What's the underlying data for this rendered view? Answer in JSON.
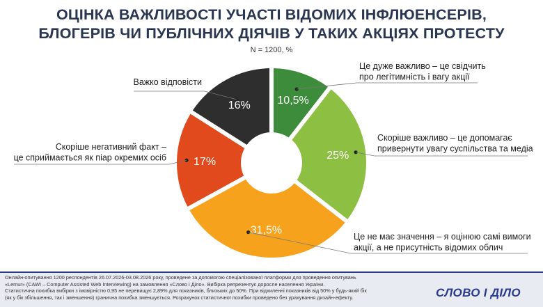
{
  "header": {
    "title_line1": "ОЦІНКА ВАЖЛИВОСТІ УЧАСТІ ВІДОМИХ ІНФЛЮЕНСЕРІВ,",
    "title_line2": "БЛОГЕРІВ ЧИ ПУБЛІЧНИХ ДІЯЧІВ У ТАКИХ АКЦІЯХ ПРОТЕСТУ",
    "subtitle": "N = 1200, %"
  },
  "chart_data": {
    "type": "pie",
    "variant": "donut",
    "unit": "%",
    "slices": [
      {
        "label_lines": [
          "Це дуже важливо – це свідчить",
          "про легітимність і вагу акції"
        ],
        "value": 10.5,
        "value_text": "10,5",
        "color": "#3c8c3c",
        "value_color": "#ffffff"
      },
      {
        "label_lines": [
          "Скоріше важливо – це допомагає",
          "привернути увагу суспільства та медіа"
        ],
        "value": 25,
        "value_text": "25",
        "color": "#8cbf42",
        "value_color": "#ffffff"
      },
      {
        "label_lines": [
          "Це не має значення – я оцінюю самі вимоги",
          "акції, а не присутність відомих облич"
        ],
        "value": 31.5,
        "value_text": "31,5",
        "color": "#f6a21d",
        "value_color": "#ffffff"
      },
      {
        "label_lines": [
          "Скоріше негативний факт –",
          "це сприймається як піар окремих осіб"
        ],
        "value": 17,
        "value_text": "17",
        "color": "#e04a1c",
        "value_color": "#ffffff"
      },
      {
        "label_lines": [
          "Важко відповісти"
        ],
        "value": 16,
        "value_text": "16",
        "color": "#2e2e2e",
        "value_color": "#ffffff"
      }
    ]
  },
  "footer": {
    "line1": "Онлайн-опитування 1200 респондентів 26.07.2026-03.08.2026 року, проведене за допомогою спеціалізованої платформи для проведення опитувань",
    "line2": "«Lemur» (CAWI – Computer Assisted Web Interviewing) на замовлення «Слово і Діло». Вибірка репрезентує доросле населення України.",
    "line3": "Статистична похибка вибірки з імовірністю 0,95 не перевищує 2,89% для показників, близьких до 50%. При відхиленні показників від 50% у будь-який бік",
    "line4": "(як у бік збільшення, так і зменшення) гранична похибка зменшується. Розрахунок статистичної похибки проведено без урахування дизайн-ефекту.",
    "logo": "СЛОВО І ДІЛО"
  }
}
